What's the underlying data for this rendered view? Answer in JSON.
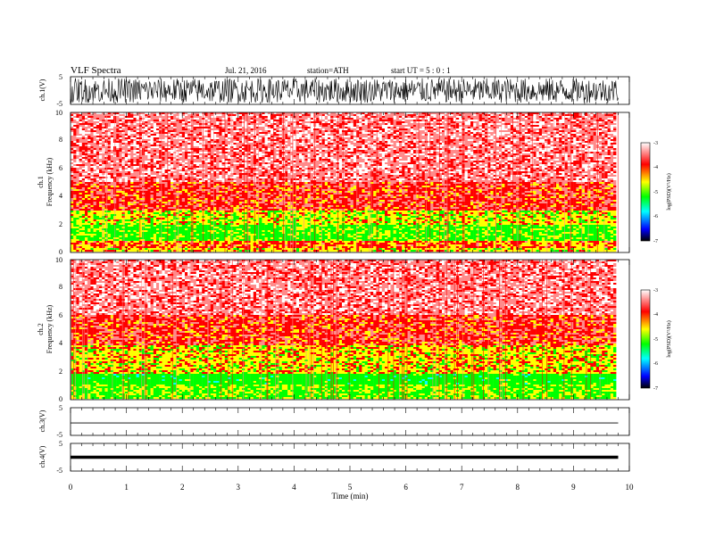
{
  "header": {
    "title": "VLF Spectra",
    "date": "Jul. 21, 2016",
    "station": "station=ATH",
    "start": "start UT = 5 : 0 : 1"
  },
  "colors": {
    "scale_top": "#ffffff",
    "scale_m3": "#ff8a8a",
    "scale_m4": "#ff0000",
    "scale_m45": "#ffff00",
    "scale_m5": "#00ff00",
    "scale_m6": "#00ffff",
    "scale_m65": "#0000ff",
    "scale_bottom": "#000000"
  },
  "chart_data": [
    {
      "type": "line",
      "id": "ch1-waveform",
      "ylabel": "ch.1(V)",
      "ylim": [
        -5,
        5
      ],
      "yticks": [
        "5",
        "-5"
      ],
      "xlim": [
        0,
        10
      ],
      "description_values": {
        "amplitude_typical_V": 4.5
      }
    },
    {
      "type": "heatmap",
      "id": "ch1-spectrogram",
      "ylabel": [
        "ch.1",
        "Frequency (kHz)"
      ],
      "ylim": [
        0,
        10
      ],
      "yticks": [
        "0",
        "2",
        "4",
        "6",
        "8",
        "10"
      ],
      "xlim": [
        0,
        10
      ],
      "colorbar": {
        "label": "log(PSD)(V²/Hz)",
        "ticks": [
          "-3",
          "-4",
          "-5",
          "-6",
          "-7"
        ],
        "range": [
          -7,
          -3
        ]
      },
      "bands": [
        {
          "f_lo": 0.0,
          "f_hi": 0.3,
          "level": -4.5
        },
        {
          "f_lo": 0.3,
          "f_hi": 0.8,
          "level": -4.2
        },
        {
          "f_lo": 0.8,
          "f_hi": 1.9,
          "level": -5.0
        },
        {
          "f_lo": 1.9,
          "f_hi": 3.0,
          "level": -4.6
        },
        {
          "f_lo": 3.0,
          "f_hi": 5.0,
          "level": -4.0
        },
        {
          "f_lo": 5.0,
          "f_hi": 10.0,
          "level": -3.6
        }
      ]
    },
    {
      "type": "heatmap",
      "id": "ch2-spectrogram",
      "ylabel": [
        "ch.2",
        "Frequency (kHz)"
      ],
      "ylim": [
        0,
        10
      ],
      "yticks": [
        "0",
        "2",
        "4",
        "6",
        "8",
        "10"
      ],
      "xlim": [
        0,
        10
      ],
      "colorbar": {
        "label": "log(PSD)(V²/Hz)",
        "ticks": [
          "-3",
          "-4",
          "-5",
          "-6",
          "-7"
        ],
        "range": [
          -7,
          -3
        ]
      },
      "bands": [
        {
          "f_lo": 0.0,
          "f_hi": 1.0,
          "level": -4.9
        },
        {
          "f_lo": 1.0,
          "f_hi": 1.8,
          "level": -5.2
        },
        {
          "f_lo": 1.8,
          "f_hi": 3.8,
          "level": -4.5
        },
        {
          "f_lo": 3.8,
          "f_hi": 6.0,
          "level": -4.0
        },
        {
          "f_lo": 6.0,
          "f_hi": 10.0,
          "level": -3.6
        }
      ]
    },
    {
      "type": "line",
      "id": "ch3-waveform",
      "ylabel": "ch.3(V)",
      "ylim": [
        -5,
        5
      ],
      "yticks": [
        "5",
        "-5"
      ],
      "xlim": [
        0,
        10
      ],
      "description_values": {
        "level_V": -0.5
      }
    },
    {
      "type": "line",
      "id": "ch4-waveform",
      "ylabel": "ch.4(V)",
      "ylim": [
        -5,
        5
      ],
      "yticks": [
        "5",
        "-5"
      ],
      "xlim": [
        0,
        10
      ],
      "description_values": {
        "level_V": 0
      }
    }
  ],
  "xaxis": {
    "label": "Time (min)",
    "ticks": [
      "0",
      "1",
      "2",
      "3",
      "4",
      "5",
      "6",
      "7",
      "8",
      "9",
      "10"
    ],
    "xlim": [
      0,
      10
    ],
    "data_end_min": 9.8
  }
}
